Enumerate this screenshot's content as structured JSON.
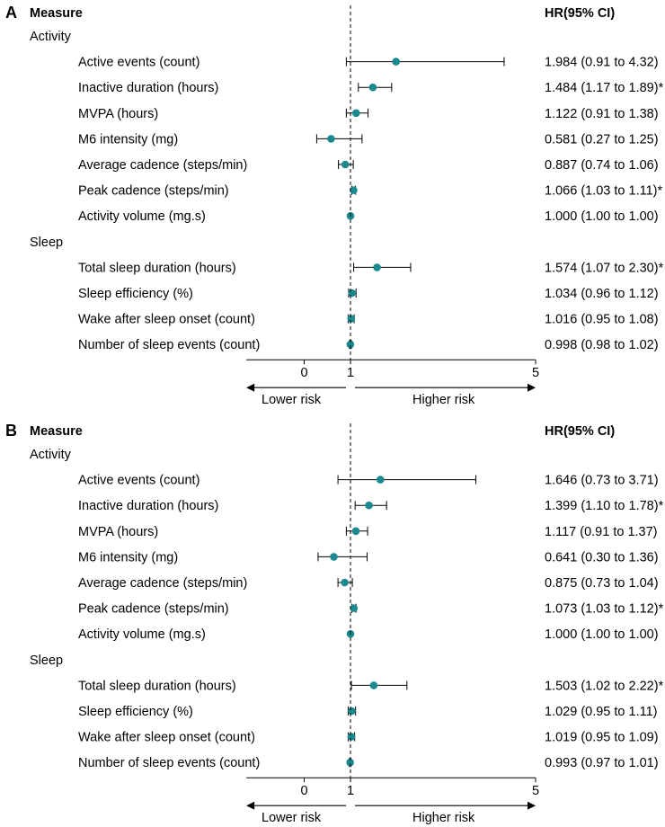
{
  "chart_data": [
    {
      "type": "forest",
      "panel_label": "A",
      "header_measure": "Measure",
      "header_hr": "HR(95% CI)",
      "x_ticks": [
        0,
        1,
        5
      ],
      "xlim": [
        -1.25,
        5
      ],
      "reference_value": 1,
      "arrow_left_label": "Lower risk",
      "arrow_right_label": "Higher risk",
      "groups": [
        {
          "name": "Activity",
          "rows": [
            {
              "label": "Active events (count)",
              "hr": 1.984,
              "lo": 0.91,
              "hi": 4.32,
              "ci_text": "1.984 (0.91 to 4.32)",
              "sig": ""
            },
            {
              "label": "Inactive duration (hours)",
              "hr": 1.484,
              "lo": 1.17,
              "hi": 1.89,
              "ci_text": "1.484 (1.17 to 1.89)",
              "sig": "*"
            },
            {
              "label": "MVPA (hours)",
              "hr": 1.122,
              "lo": 0.91,
              "hi": 1.38,
              "ci_text": "1.122 (0.91 to 1.38)",
              "sig": ""
            },
            {
              "label": "M6 intensity (mg)",
              "hr": 0.581,
              "lo": 0.27,
              "hi": 1.25,
              "ci_text": "0.581 (0.27 to 1.25)",
              "sig": ""
            },
            {
              "label": "Average cadence (steps/min)",
              "hr": 0.887,
              "lo": 0.74,
              "hi": 1.06,
              "ci_text": "0.887 (0.74 to 1.06)",
              "sig": ""
            },
            {
              "label": "Peak cadence (steps/min)",
              "hr": 1.066,
              "lo": 1.03,
              "hi": 1.11,
              "ci_text": "1.066 (1.03 to 1.11)",
              "sig": "*"
            },
            {
              "label": "Activity volume (mg.s)",
              "hr": 1.0,
              "lo": 1.0,
              "hi": 1.0,
              "ci_text": "1.000 (1.00 to 1.00)",
              "sig": ""
            }
          ]
        },
        {
          "name": "Sleep",
          "rows": [
            {
              "label": "Total sleep duration (hours)",
              "hr": 1.574,
              "lo": 1.07,
              "hi": 2.3,
              "ci_text": "1.574 (1.07 to 2.30)",
              "sig": "*"
            },
            {
              "label": "Sleep efficiency (%)",
              "hr": 1.034,
              "lo": 0.96,
              "hi": 1.12,
              "ci_text": "1.034 (0.96 to 1.12)",
              "sig": ""
            },
            {
              "label": "Wake after sleep onset (count)",
              "hr": 1.016,
              "lo": 0.95,
              "hi": 1.08,
              "ci_text": "1.016 (0.95 to 1.08)",
              "sig": ""
            },
            {
              "label": "Number of sleep events (count)",
              "hr": 0.998,
              "lo": 0.98,
              "hi": 1.02,
              "ci_text": "0.998 (0.98 to 1.02)",
              "sig": ""
            }
          ]
        }
      ]
    },
    {
      "type": "forest",
      "panel_label": "B",
      "header_measure": "Measure",
      "header_hr": "HR(95% CI)",
      "x_ticks": [
        0,
        1,
        5
      ],
      "xlim": [
        -1.25,
        5
      ],
      "reference_value": 1,
      "arrow_left_label": "Lower risk",
      "arrow_right_label": "Higher risk",
      "groups": [
        {
          "name": "Activity",
          "rows": [
            {
              "label": "Active events (count)",
              "hr": 1.646,
              "lo": 0.73,
              "hi": 3.71,
              "ci_text": "1.646 (0.73 to 3.71)",
              "sig": ""
            },
            {
              "label": "Inactive duration (hours)",
              "hr": 1.399,
              "lo": 1.1,
              "hi": 1.78,
              "ci_text": "1.399 (1.10 to 1.78)",
              "sig": "*"
            },
            {
              "label": "MVPA (hours)",
              "hr": 1.117,
              "lo": 0.91,
              "hi": 1.37,
              "ci_text": "1.117 (0.91 to 1.37)",
              "sig": ""
            },
            {
              "label": "M6 intensity (mg)",
              "hr": 0.641,
              "lo": 0.3,
              "hi": 1.36,
              "ci_text": "0.641 (0.30 to 1.36)",
              "sig": ""
            },
            {
              "label": "Average cadence (steps/min)",
              "hr": 0.875,
              "lo": 0.73,
              "hi": 1.04,
              "ci_text": "0.875 (0.73 to 1.04)",
              "sig": ""
            },
            {
              "label": "Peak cadence (steps/min)",
              "hr": 1.073,
              "lo": 1.03,
              "hi": 1.12,
              "ci_text": "1.073 (1.03 to 1.12)",
              "sig": "*"
            },
            {
              "label": "Activity volume (mg.s)",
              "hr": 1.0,
              "lo": 1.0,
              "hi": 1.0,
              "ci_text": "1.000 (1.00 to 1.00)",
              "sig": ""
            }
          ]
        },
        {
          "name": "Sleep",
          "rows": [
            {
              "label": "Total sleep duration (hours)",
              "hr": 1.503,
              "lo": 1.02,
              "hi": 2.22,
              "ci_text": "1.503 (1.02 to 2.22)",
              "sig": "*"
            },
            {
              "label": "Sleep efficiency (%)",
              "hr": 1.029,
              "lo": 0.95,
              "hi": 1.11,
              "ci_text": "1.029 (0.95 to 1.11)",
              "sig": ""
            },
            {
              "label": "Wake after sleep onset (count)",
              "hr": 1.019,
              "lo": 0.95,
              "hi": 1.09,
              "ci_text": "1.019 (0.95 to 1.09)",
              "sig": ""
            },
            {
              "label": "Number of sleep events (count)",
              "hr": 0.993,
              "lo": 0.97,
              "hi": 1.01,
              "ci_text": "0.993 (0.97 to 1.01)",
              "sig": ""
            }
          ]
        }
      ]
    }
  ],
  "colors": {
    "point": "#1b8a8f",
    "line": "#000000"
  }
}
